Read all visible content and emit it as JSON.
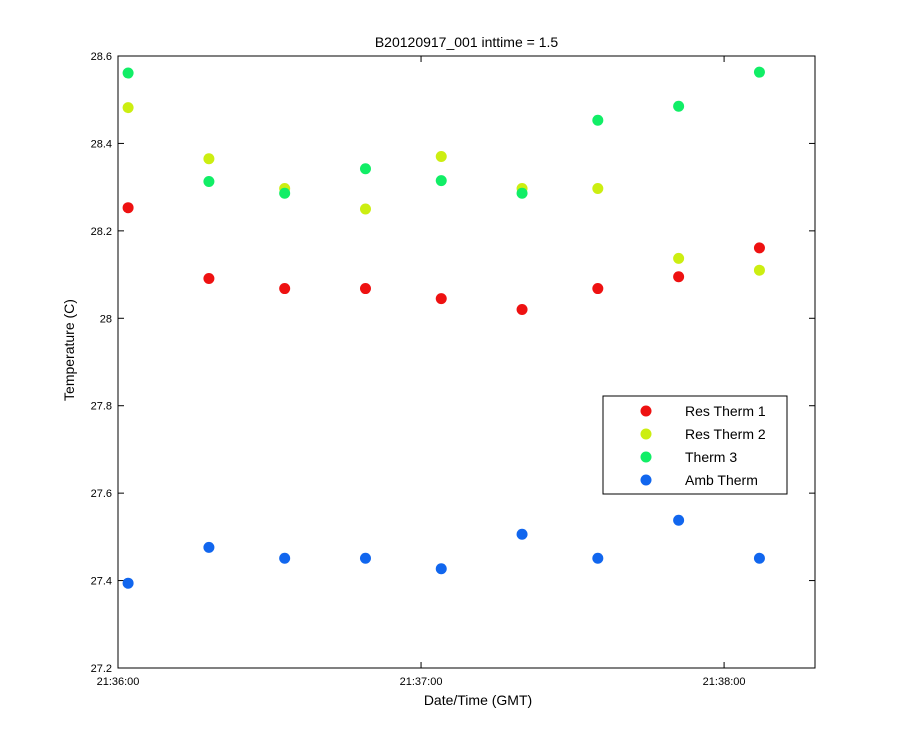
{
  "chart_data": {
    "type": "scatter",
    "title": "B20120917_001 inttime = 1.5",
    "xlabel": "Date/Time (GMT)",
    "ylabel": "Temperature (C)",
    "x_ticks": [
      "21:36:00",
      "21:37:00",
      "21:38:00"
    ],
    "xlim": [
      "21:36:00",
      "21:38:18"
    ],
    "ylim": [
      27.2,
      28.6
    ],
    "y_ticks": [
      "27.2",
      "27.4",
      "27.6",
      "27.8",
      "28",
      "28.2",
      "28.4",
      "28.6"
    ],
    "grid": false,
    "legend_position": "right",
    "x": [
      "21:36:02",
      "21:36:18",
      "21:36:33",
      "21:36:49",
      "21:37:04",
      "21:37:20",
      "21:37:35",
      "21:37:51",
      "21:38:07"
    ],
    "series": [
      {
        "name": "Res Therm 1",
        "color": "#ee1111",
        "values": [
          28.253,
          28.091,
          28.068,
          28.068,
          28.045,
          28.02,
          28.068,
          28.095,
          28.161
        ]
      },
      {
        "name": "Res Therm 2",
        "color": "#ccee11",
        "values": [
          28.482,
          28.365,
          28.297,
          28.25,
          28.37,
          28.297,
          28.297,
          28.137,
          28.11
        ]
      },
      {
        "name": "Therm 3",
        "color": "#11ee66",
        "values": [
          28.561,
          28.313,
          28.286,
          28.342,
          28.315,
          28.286,
          28.453,
          28.485,
          28.563
        ]
      },
      {
        "name": "Amb Therm",
        "color": "#1166ee",
        "values": [
          27.394,
          27.476,
          27.451,
          27.451,
          27.427,
          27.506,
          27.451,
          27.538,
          27.451
        ]
      }
    ]
  }
}
